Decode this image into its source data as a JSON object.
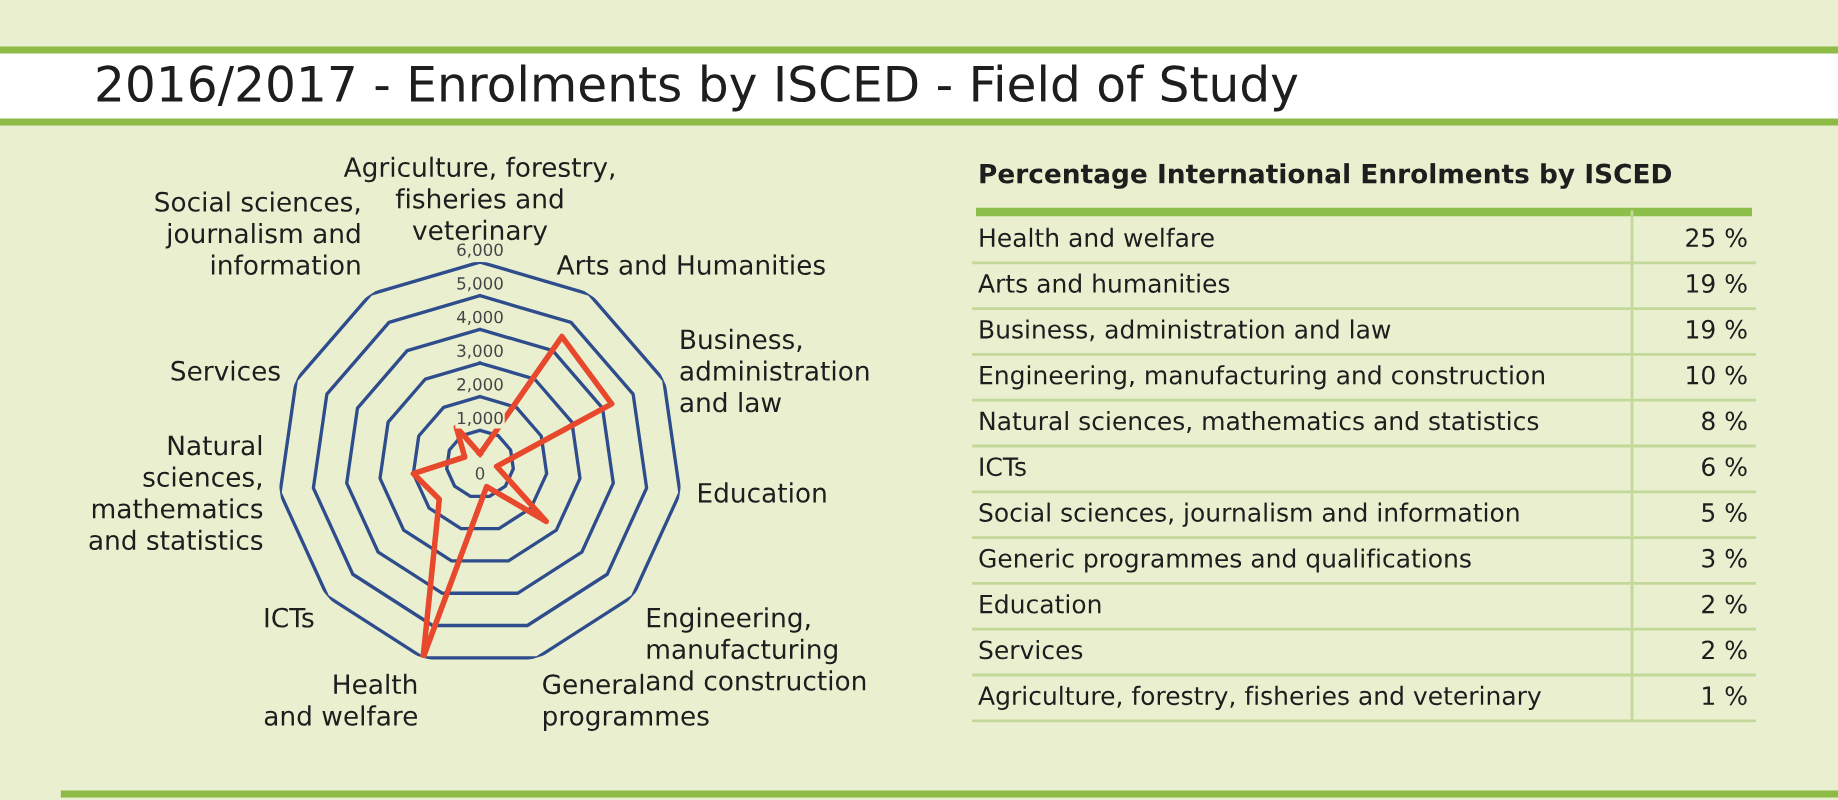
{
  "chart_data": [
    {
      "type": "radar",
      "title": "2016/2017 - Enrolments by ISCED - Field of Study",
      "categories": [
        "Agriculture, forestry,\nfisheries and\nveterinary",
        "Arts and Humanities",
        "Business,\nadministration\nand law",
        "Education",
        "Engineering,\nmanufacturing\nand construction",
        "General\nprogrammes",
        "Health\nand welfare",
        "ICTs",
        "Natural\nsciences,\nmathematics\nand statistics",
        "Services",
        "Social sciences,\njournalism and\ninformation"
      ],
      "series": [
        {
          "color": "#e8482c",
          "values": [
            300,
            4500,
            4300,
            500,
            2600,
            700,
            6000,
            1600,
            2000,
            500,
            1300
          ]
        }
      ],
      "ylim": [
        0,
        6000
      ],
      "yticks": [
        0,
        {
          "value": 1000,
          "label": "1,000"
        },
        {
          "value": 2000,
          "label": "2,000"
        },
        {
          "value": 3000,
          "label": "3,000"
        },
        {
          "value": 4000,
          "label": "4,000"
        },
        {
          "value": 5000,
          "label": "5,000"
        },
        {
          "value": 6000,
          "label": "6,000"
        }
      ],
      "grid": "y"
    },
    {
      "type": "other",
      "title": "Percentage International Enrolments by ISCED",
      "categories": [
        "Health and welfare",
        "Arts and humanities",
        "Business, administration and law",
        "Engineering, manufacturing and construction",
        "Natural sciences, mathematics and statistics",
        "ICTs",
        "Social sciences, journalism and information",
        "Generic programmes and qualifications",
        "Education",
        "Services",
        "Agriculture, forestry, fisheries and veterinary"
      ],
      "value_labels": [
        "25 %",
        "19 %",
        "19 %",
        "10 %",
        "8 %",
        "6 %",
        "5 %",
        "3 %",
        "2 %",
        "2 %",
        "1 %"
      ]
    }
  ]
}
